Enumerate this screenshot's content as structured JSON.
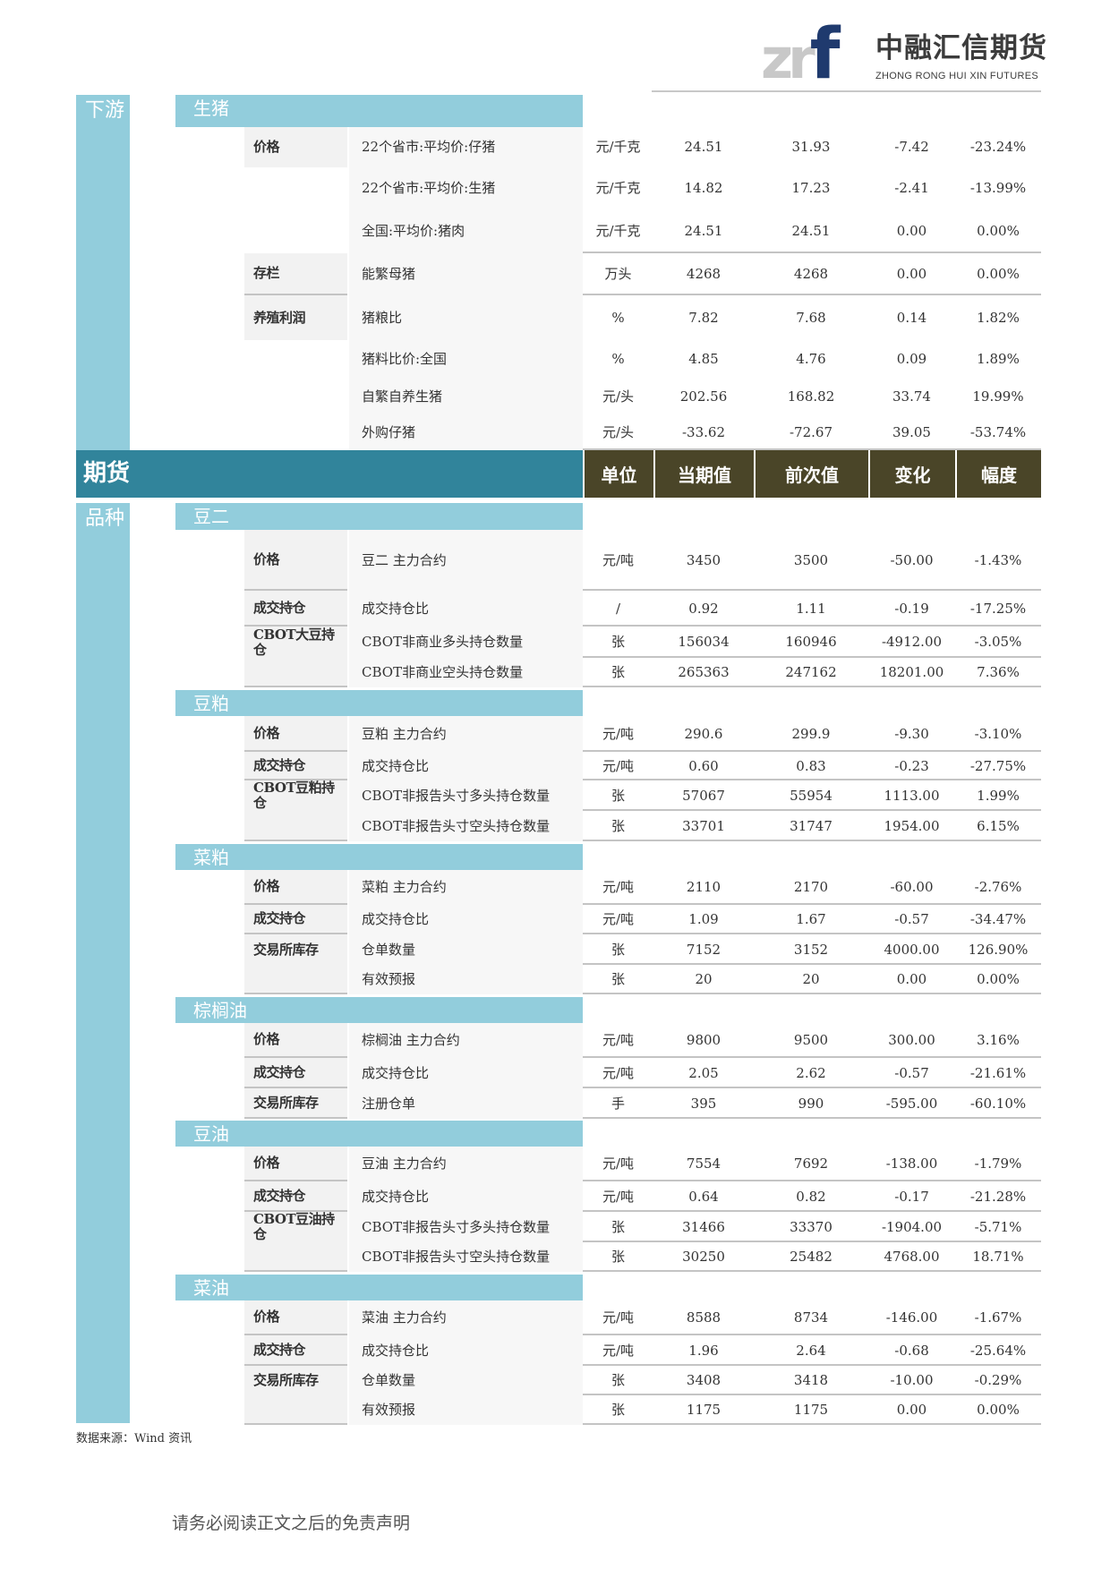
{
  "logo": {
    "mark_gray": "zr",
    "mark_blue": "f",
    "name_cn": "中融汇信期货",
    "name_en": "ZHONG RONG HUI XIN FUTURES"
  },
  "colors": {
    "light_blue": "#92cddc",
    "teal": "#31849b",
    "olive": "#4a4528"
  },
  "downstream_label": "下游",
  "futures": {
    "label": "期货",
    "variety_label": "品种",
    "columns": [
      "单位",
      "当期值",
      "前次值",
      "变化",
      "幅度"
    ]
  },
  "sections": [
    {
      "name": "生猪",
      "rows": [
        {
          "group": "价格",
          "name": "22个省市:平均价:仔猪",
          "unit": "元/千克",
          "cur": "24.51",
          "prev": "31.93",
          "chg": "-7.42",
          "pct": "-23.24%"
        },
        {
          "group": "",
          "name": "22个省市:平均价:生猪",
          "unit": "元/千克",
          "cur": "14.82",
          "prev": "17.23",
          "chg": "-2.41",
          "pct": "-13.99%"
        },
        {
          "group": "",
          "name": "全国:平均价:猪肉",
          "unit": "元/千克",
          "cur": "24.51",
          "prev": "24.51",
          "chg": "0.00",
          "pct": "0.00%"
        },
        {
          "group": "存栏",
          "name": "能繁母猪",
          "unit": "万头",
          "cur": "4268",
          "prev": "4268",
          "chg": "0.00",
          "pct": "0.00%"
        },
        {
          "group": "养殖利润",
          "name": "猪粮比",
          "unit": "%",
          "cur": "7.82",
          "prev": "7.68",
          "chg": "0.14",
          "pct": "1.82%"
        },
        {
          "group": "",
          "name": "猪料比价:全国",
          "unit": "%",
          "cur": "4.85",
          "prev": "4.76",
          "chg": "0.09",
          "pct": "1.89%"
        },
        {
          "group": "",
          "name": "自繁自养生猪",
          "unit": "元/头",
          "cur": "202.56",
          "prev": "168.82",
          "chg": "33.74",
          "pct": "19.99%"
        },
        {
          "group": "",
          "name": "外购仔猪",
          "unit": "元/头",
          "cur": "-33.62",
          "prev": "-72.67",
          "chg": "39.05",
          "pct": "-53.74%"
        }
      ]
    },
    {
      "name": "豆二",
      "rows": [
        {
          "group": "价格",
          "name": "豆二 主力合约",
          "unit": "元/吨",
          "cur": "3450",
          "prev": "3500",
          "chg": "-50.00",
          "pct": "-1.43%"
        },
        {
          "group": "成交持仓",
          "name": "成交持仓比",
          "unit": "/",
          "cur": "0.92",
          "prev": "1.11",
          "chg": "-0.19",
          "pct": "-17.25%"
        },
        {
          "group": "CBOT大豆持仓",
          "name": "CBOT非商业多头持仓数量",
          "unit": "张",
          "cur": "156034",
          "prev": "160946",
          "chg": "-4912.00",
          "pct": "-3.05%"
        },
        {
          "group": "",
          "name": "CBOT非商业空头持仓数量",
          "unit": "张",
          "cur": "265363",
          "prev": "247162",
          "chg": "18201.00",
          "pct": "7.36%"
        }
      ]
    },
    {
      "name": "豆粕",
      "rows": [
        {
          "group": "价格",
          "name": "豆粕 主力合约",
          "unit": "元/吨",
          "cur": "290.6",
          "prev": "299.9",
          "chg": "-9.30",
          "pct": "-3.10%"
        },
        {
          "group": "成交持仓",
          "name": "成交持仓比",
          "unit": "元/吨",
          "cur": "0.60",
          "prev": "0.83",
          "chg": "-0.23",
          "pct": "-27.75%"
        },
        {
          "group": "CBOT豆粕持仓",
          "name": "CBOT非报告头寸多头持仓数量",
          "unit": "张",
          "cur": "57067",
          "prev": "55954",
          "chg": "1113.00",
          "pct": "1.99%"
        },
        {
          "group": "",
          "name": "CBOT非报告头寸空头持仓数量",
          "unit": "张",
          "cur": "33701",
          "prev": "31747",
          "chg": "1954.00",
          "pct": "6.15%"
        }
      ]
    },
    {
      "name": "菜粕",
      "rows": [
        {
          "group": "价格",
          "name": "菜粕 主力合约",
          "unit": "元/吨",
          "cur": "2110",
          "prev": "2170",
          "chg": "-60.00",
          "pct": "-2.76%"
        },
        {
          "group": "成交持仓",
          "name": "成交持仓比",
          "unit": "元/吨",
          "cur": "1.09",
          "prev": "1.67",
          "chg": "-0.57",
          "pct": "-34.47%"
        },
        {
          "group": "交易所库存",
          "name": "仓单数量",
          "unit": "张",
          "cur": "7152",
          "prev": "3152",
          "chg": "4000.00",
          "pct": "126.90%"
        },
        {
          "group": "",
          "name": "有效预报",
          "unit": "张",
          "cur": "20",
          "prev": "20",
          "chg": "0.00",
          "pct": "0.00%"
        }
      ]
    },
    {
      "name": "棕榈油",
      "rows": [
        {
          "group": "价格",
          "name": "棕榈油 主力合约",
          "unit": "元/吨",
          "cur": "9800",
          "prev": "9500",
          "chg": "300.00",
          "pct": "3.16%"
        },
        {
          "group": "成交持仓",
          "name": "成交持仓比",
          "unit": "元/吨",
          "cur": "2.05",
          "prev": "2.62",
          "chg": "-0.57",
          "pct": "-21.61%"
        },
        {
          "group": "交易所库存",
          "name": "注册仓单",
          "unit": "手",
          "cur": "395",
          "prev": "990",
          "chg": "-595.00",
          "pct": "-60.10%"
        }
      ]
    },
    {
      "name": "豆油",
      "rows": [
        {
          "group": "价格",
          "name": "豆油 主力合约",
          "unit": "元/吨",
          "cur": "7554",
          "prev": "7692",
          "chg": "-138.00",
          "pct": "-1.79%"
        },
        {
          "group": "成交持仓",
          "name": "成交持仓比",
          "unit": "元/吨",
          "cur": "0.64",
          "prev": "0.82",
          "chg": "-0.17",
          "pct": "-21.28%"
        },
        {
          "group": "CBOT豆油持仓",
          "name": "CBOT非报告头寸多头持仓数量",
          "unit": "张",
          "cur": "31466",
          "prev": "33370",
          "chg": "-1904.00",
          "pct": "-5.71%"
        },
        {
          "group": "",
          "name": "CBOT非报告头寸空头持仓数量",
          "unit": "张",
          "cur": "30250",
          "prev": "25482",
          "chg": "4768.00",
          "pct": "18.71%"
        }
      ]
    },
    {
      "name": "菜油",
      "rows": [
        {
          "group": "价格",
          "name": "菜油 主力合约",
          "unit": "元/吨",
          "cur": "8588",
          "prev": "8734",
          "chg": "-146.00",
          "pct": "-1.67%"
        },
        {
          "group": "成交持仓",
          "name": "成交持仓比",
          "unit": "元/吨",
          "cur": "1.96",
          "prev": "2.64",
          "chg": "-0.68",
          "pct": "-25.64%"
        },
        {
          "group": "交易所库存",
          "name": "仓单数量",
          "unit": "张",
          "cur": "3408",
          "prev": "3418",
          "chg": "-10.00",
          "pct": "-0.29%"
        },
        {
          "group": "",
          "name": "有效预报",
          "unit": "张",
          "cur": "1175",
          "prev": "1175",
          "chg": "0.00",
          "pct": "0.00%"
        }
      ]
    }
  ],
  "source": "数据来源：Wind 资讯",
  "footer": "请务必阅读正文之后的免责声明"
}
